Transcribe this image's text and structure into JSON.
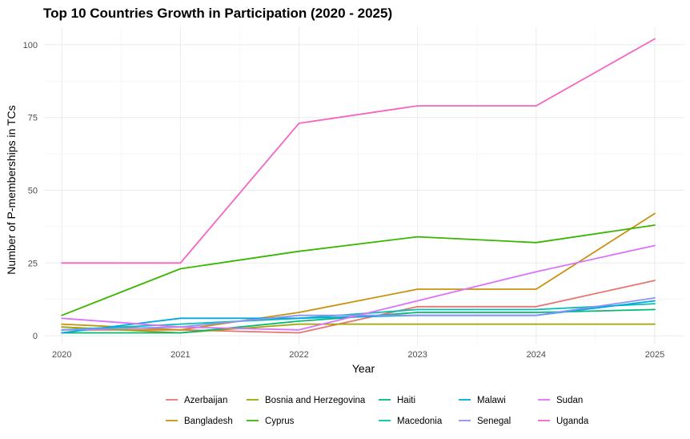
{
  "chart_data": {
    "type": "line",
    "title": "Top 10 Countries Growth in Participation (2020 - 2025)",
    "xlabel": "Year",
    "ylabel": "Number of P-memberships in TCs",
    "x": [
      2020,
      2021,
      2022,
      2023,
      2024,
      2025
    ],
    "xlim": [
      2019.85,
      2025.25
    ],
    "ylim": [
      -3,
      106
    ],
    "yticks": [
      0,
      25,
      50,
      75,
      100
    ],
    "grid": true,
    "legend_position": "bottom",
    "series": [
      {
        "name": "Azerbaijan",
        "color": "#E7766F",
        "values": [
          2,
          2,
          1,
          10,
          10,
          19
        ]
      },
      {
        "name": "Bangladesh",
        "color": "#C8920F",
        "values": [
          4,
          2,
          8,
          16,
          16,
          42
        ]
      },
      {
        "name": "Bosnia and Herzegovina",
        "color": "#A3A500",
        "values": [
          3,
          1,
          4,
          4,
          4,
          4
        ]
      },
      {
        "name": "Cyprus",
        "color": "#39B600",
        "values": [
          7,
          23,
          29,
          34,
          32,
          38
        ]
      },
      {
        "name": "Haiti",
        "color": "#00BA72",
        "values": [
          1,
          1,
          5,
          8,
          8,
          9
        ]
      },
      {
        "name": "Macedonia",
        "color": "#00C0B8",
        "values": [
          2,
          4,
          6,
          9,
          9,
          11
        ]
      },
      {
        "name": "Malawi",
        "color": "#00A8E0",
        "values": [
          1,
          6,
          6,
          7,
          7,
          12
        ]
      },
      {
        "name": "Senegal",
        "color": "#8E92F5",
        "values": [
          2,
          3,
          7,
          7,
          7,
          13
        ]
      },
      {
        "name": "Sudan",
        "color": "#DA72FB",
        "values": [
          6,
          3,
          2,
          12,
          22,
          31
        ]
      },
      {
        "name": "Uganda",
        "color": "#F564C3",
        "values": [
          25,
          25,
          73,
          79,
          79,
          102
        ]
      }
    ]
  }
}
